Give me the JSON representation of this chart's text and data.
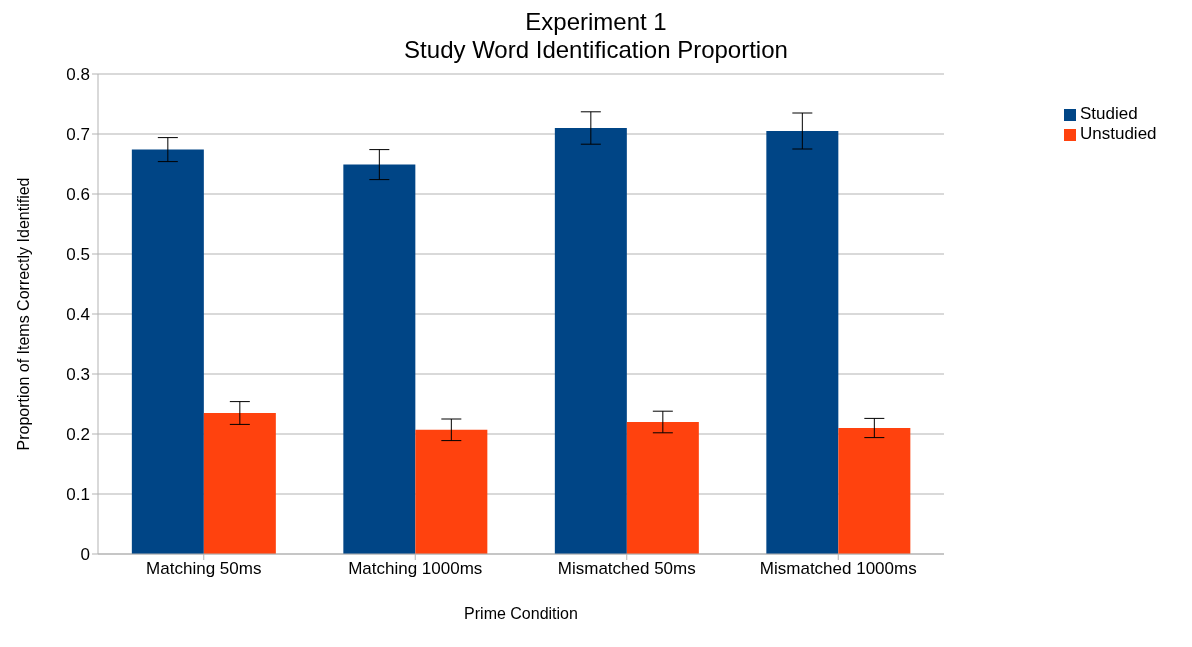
{
  "chart_data": {
    "type": "bar",
    "title": "Experiment 1",
    "subtitle": "Study Word Identification Proportion",
    "xlabel": "Prime Condition",
    "ylabel": "Proportion of Items Correctly Identified",
    "categories": [
      "Matching 50ms",
      "Matching 1000ms",
      "Mismatched 50ms",
      "Mismatched 1000ms"
    ],
    "series": [
      {
        "name": "Studied",
        "color": "#004586",
        "values": [
          0.674,
          0.649,
          0.71,
          0.705
        ],
        "errors": [
          0.02,
          0.025,
          0.027,
          0.03
        ]
      },
      {
        "name": "Unstudied",
        "color": "#ff420e",
        "values": [
          0.235,
          0.207,
          0.22,
          0.21
        ],
        "errors": [
          0.019,
          0.018,
          0.018,
          0.016
        ]
      }
    ],
    "ylim": [
      0,
      0.8
    ],
    "yticks": [
      0,
      0.1,
      0.2,
      0.3,
      0.4,
      0.5,
      0.6,
      0.7,
      0.8
    ],
    "grid": "y",
    "legend": "right"
  }
}
